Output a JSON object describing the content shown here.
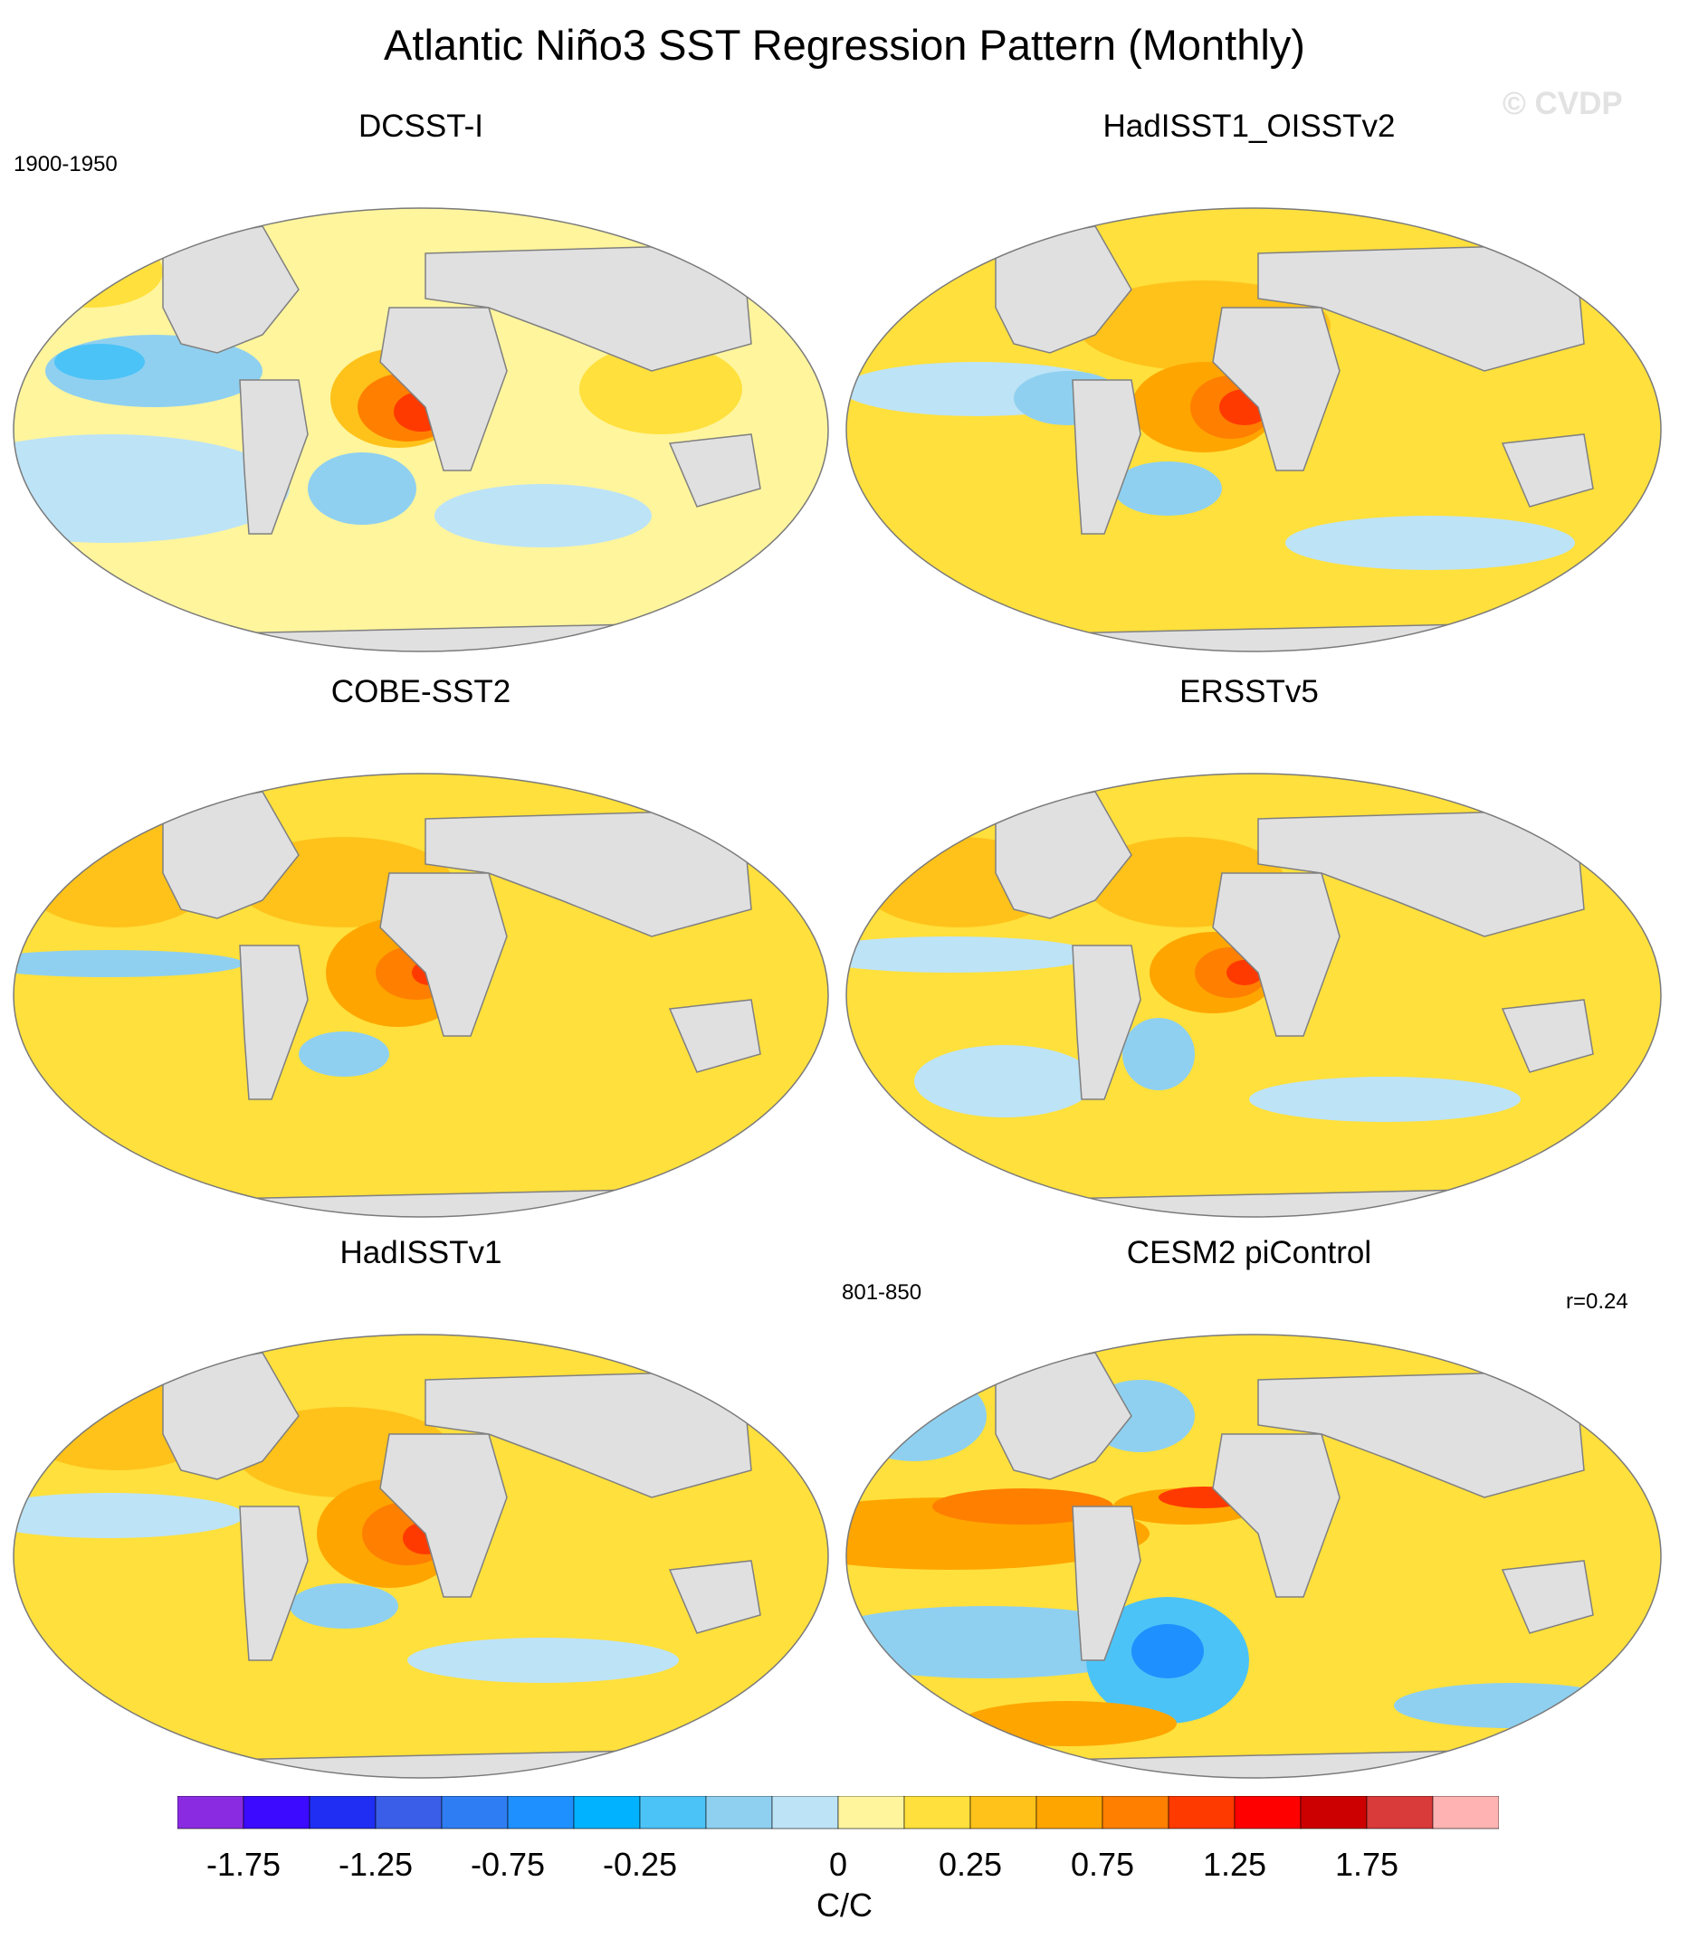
{
  "title": "Atlantic Niño3 SST Regression Pattern (Monthly)",
  "watermark": "© CVDP",
  "panels": [
    {
      "name": "DCSST-I",
      "period_left": "1900-1950",
      "period_right": "",
      "note": ""
    },
    {
      "name": "HadISST1_OISSTv2",
      "period_left": "",
      "period_right": "",
      "note": ""
    },
    {
      "name": "COBE-SST2",
      "period_left": "",
      "period_right": "",
      "note": ""
    },
    {
      "name": "ERSSTv5",
      "period_left": "",
      "period_right": "",
      "note": ""
    },
    {
      "name": "HadISSTv1",
      "period_left": "",
      "period_right": "",
      "note": ""
    },
    {
      "name": "CESM2 piControl",
      "period_left": "801-850",
      "period_right": "",
      "note": "r=0.24"
    }
  ],
  "colorbar": {
    "units": "C/C",
    "tick_labels": [
      "-1.75",
      "-1.25",
      "-0.75",
      "-0.25",
      "0",
      "0.25",
      "0.75",
      "1.25",
      "1.75"
    ],
    "colors": [
      "#8a2be2",
      "#3b0aff",
      "#1f2ef2",
      "#3a5ee8",
      "#2f7df2",
      "#1e90ff",
      "#00b2ff",
      "#4cc3f7",
      "#8fd0f0",
      "#bde3f6",
      "#fff59d",
      "#ffe03c",
      "#ffc21a",
      "#ffa500",
      "#ff7f00",
      "#ff3a00",
      "#ff0000",
      "#cc0000",
      "#d93a3a",
      "#ffb3b3"
    ]
  },
  "map_colors": {
    "land": "#e0e0e0",
    "coast": "#808080"
  }
}
